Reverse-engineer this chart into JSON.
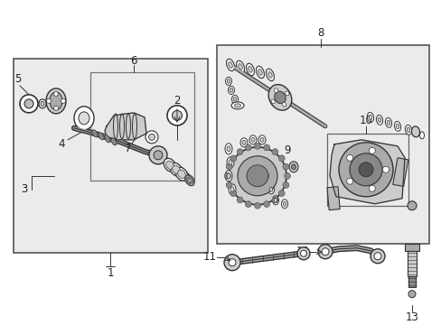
{
  "bg_color": "#ffffff",
  "bg_fill": "#e8e8e8",
  "dark": "#333333",
  "mid": "#777777",
  "light": "#bbbbbb",
  "figsize": [
    4.89,
    3.6
  ],
  "dpi": 100,
  "xlim": [
    0,
    489
  ],
  "ylim": [
    0,
    360
  ]
}
